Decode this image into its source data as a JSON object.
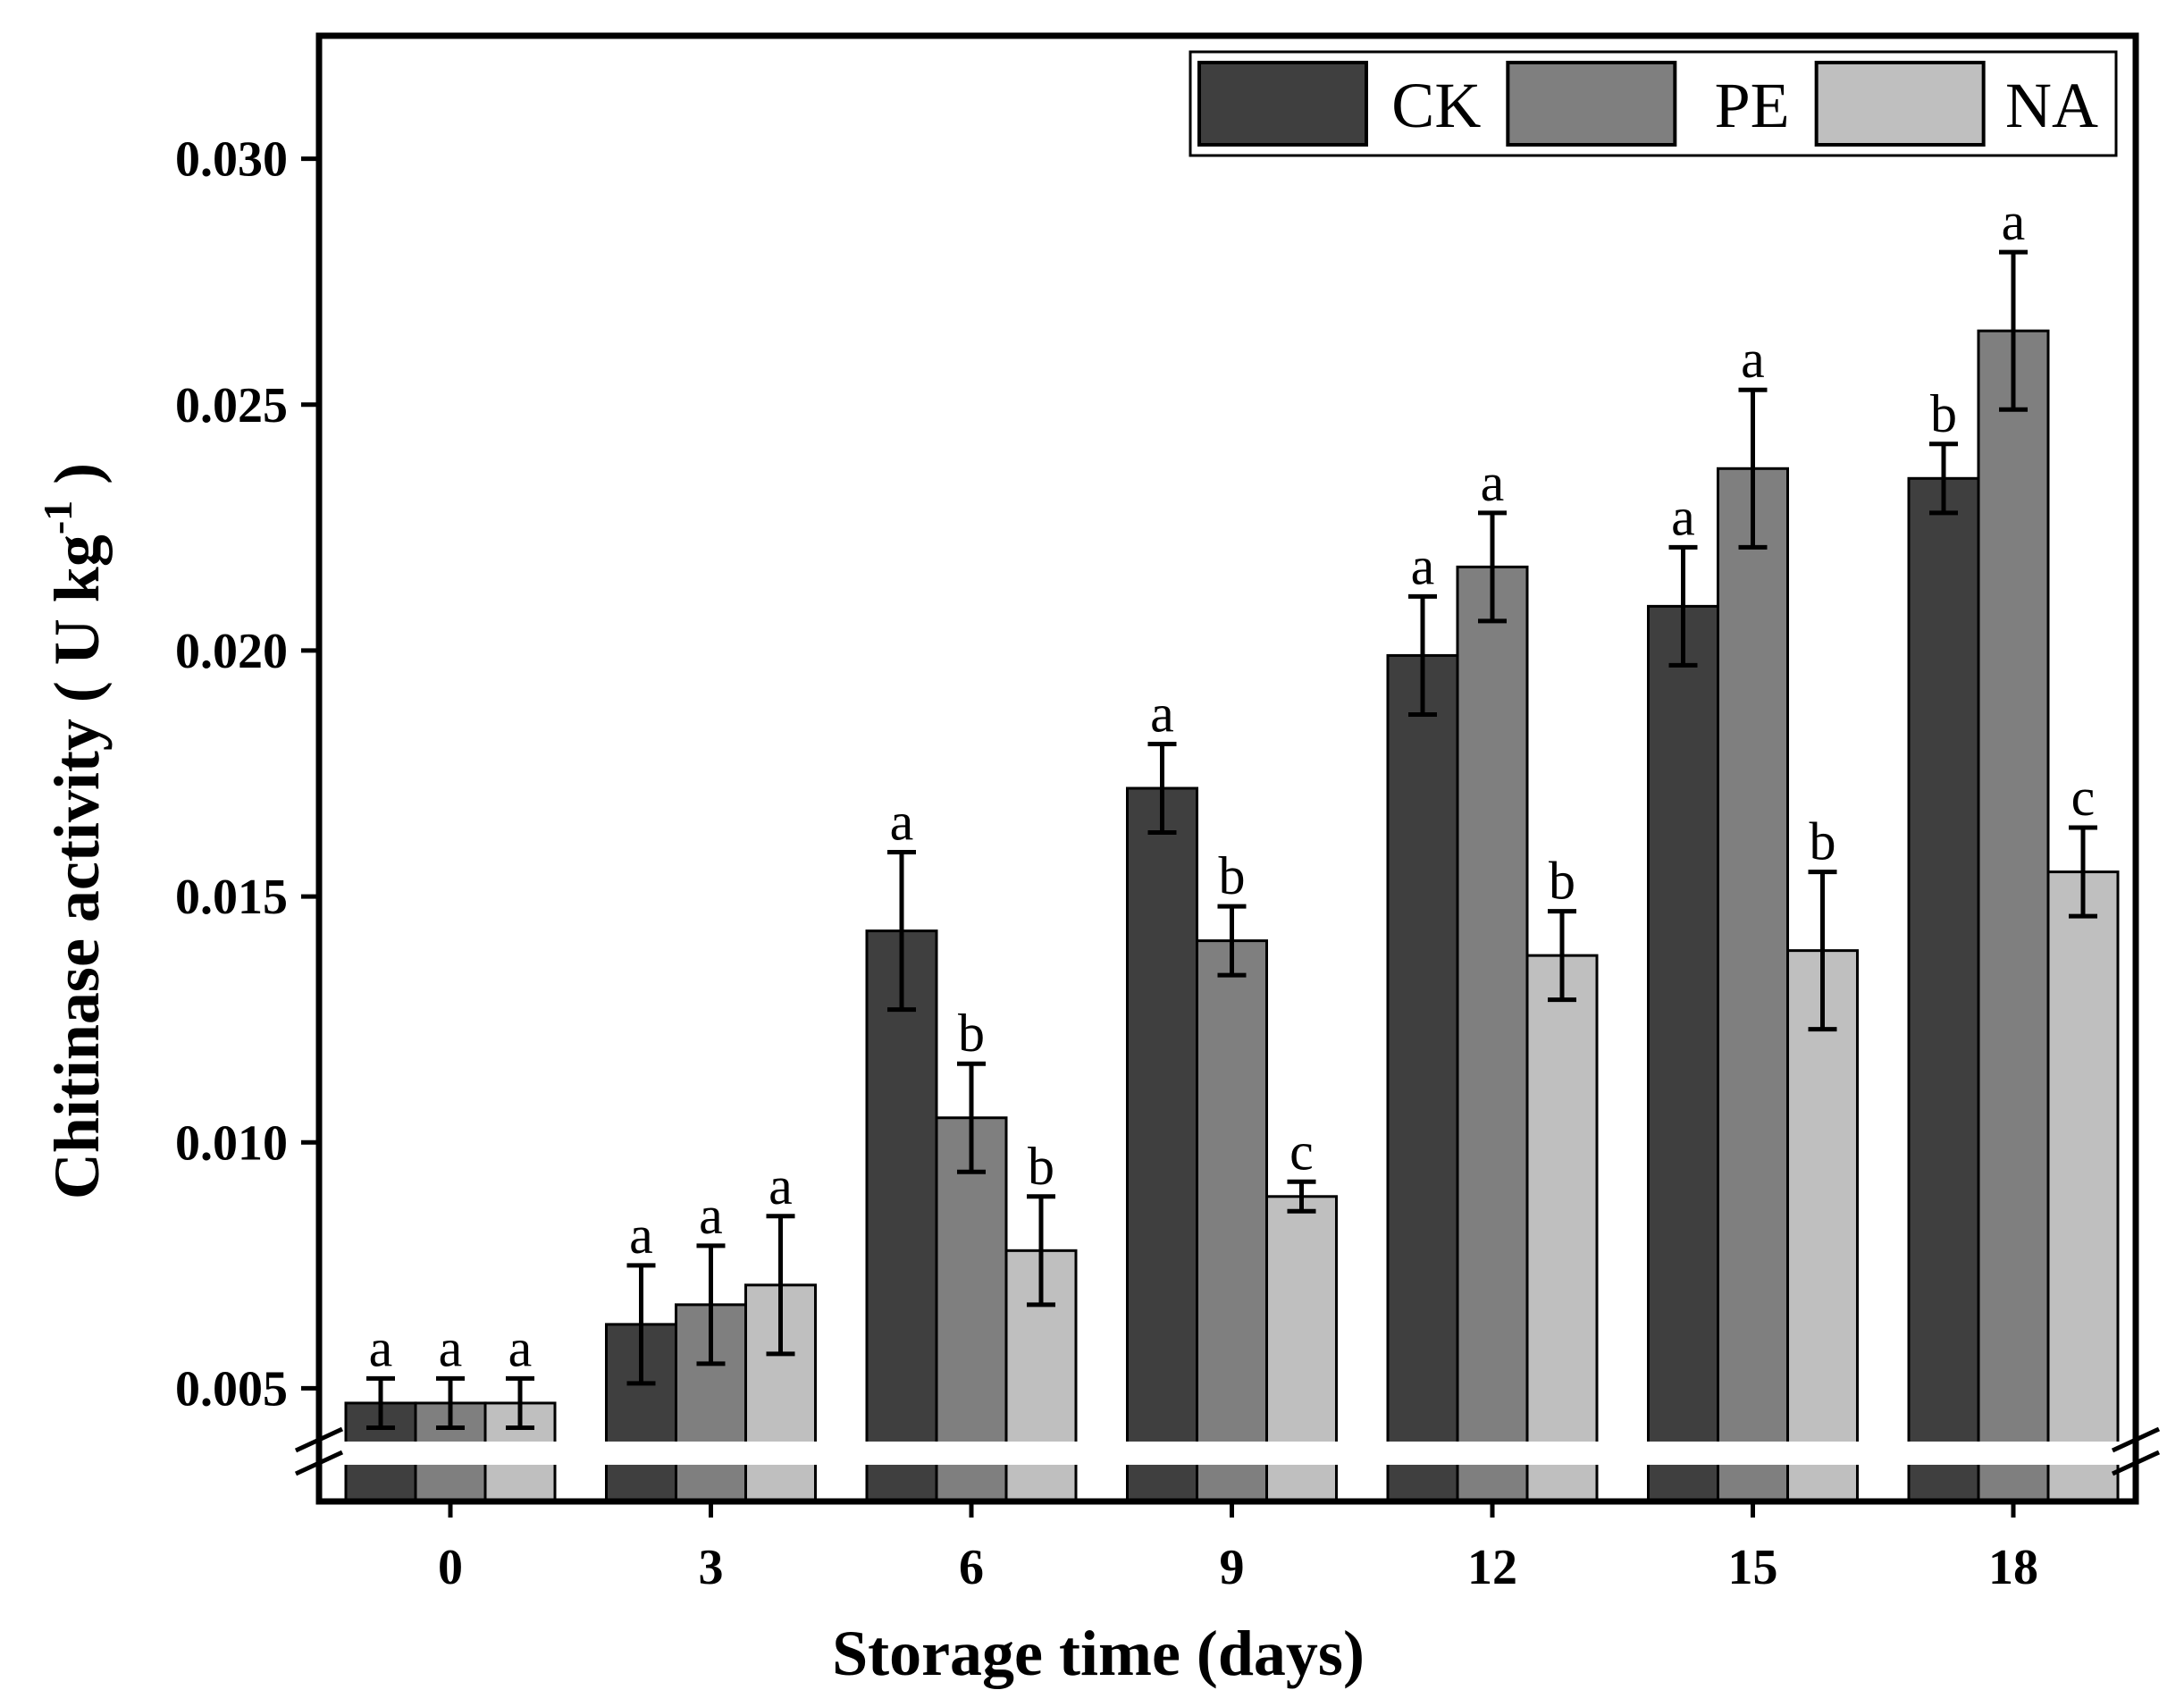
{
  "chart_data": {
    "type": "bar",
    "title": "",
    "xlabel": "Storage time (days)",
    "ylabel_main": "Chitinase activity ( U kg",
    "ylabel_sup": "-1",
    "ylabel_close": " )",
    "ylim": [
      0.0027,
      0.0325
    ],
    "axis_break_at": 0.0037,
    "yticks": [
      0.005,
      0.01,
      0.015,
      0.02,
      0.025,
      0.03
    ],
    "ytick_labels": [
      "0.005",
      "0.010",
      "0.015",
      "0.020",
      "0.025",
      "0.030"
    ],
    "categories": [
      "0",
      "3",
      "6",
      "9",
      "12",
      "15",
      "18"
    ],
    "legend_position": "top-right",
    "series": [
      {
        "name": "CK",
        "color": "#3f3f3f",
        "values": [
          0.0047,
          0.0063,
          0.0143,
          0.0172,
          0.0199,
          0.0209,
          0.0235
        ],
        "errors": [
          0.0005,
          0.0012,
          0.0016,
          0.0009,
          0.0012,
          0.0012,
          0.0007
        ],
        "letters": [
          "a",
          "a",
          "a",
          "a",
          "a",
          "a",
          "b"
        ]
      },
      {
        "name": "PE",
        "color": "#7f7f7f",
        "values": [
          0.0047,
          0.0067,
          0.0105,
          0.0141,
          0.0217,
          0.0237,
          0.0265
        ],
        "errors": [
          0.0005,
          0.0012,
          0.0011,
          0.0007,
          0.0011,
          0.0016,
          0.0016
        ],
        "letters": [
          "a",
          "a",
          "b",
          "b",
          "a",
          "a",
          "a"
        ]
      },
      {
        "name": "NA",
        "color": "#bfbfbf",
        "values": [
          0.0047,
          0.0071,
          0.0078,
          0.0089,
          0.0138,
          0.0139,
          0.0155
        ],
        "errors": [
          0.0005,
          0.0014,
          0.0011,
          0.0003,
          0.0009,
          0.0016,
          0.0009
        ],
        "letters": [
          "a",
          "a",
          "b",
          "c",
          "b",
          "b",
          "c"
        ]
      }
    ]
  }
}
